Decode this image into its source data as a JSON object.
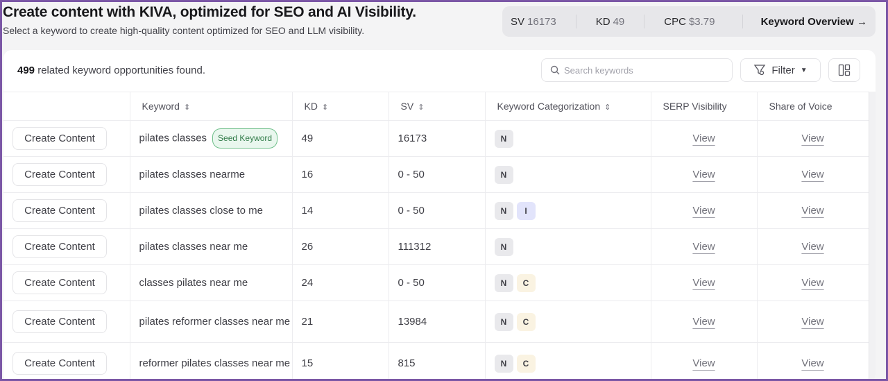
{
  "header": {
    "title": "Create content with KIVA, optimized for SEO and AI Visibility.",
    "subtitle": "Select a keyword to create high-quality content optimized for SEO and LLM visibility."
  },
  "stats": {
    "sv_label": "SV",
    "sv_value": "16173",
    "kd_label": "KD",
    "kd_value": "49",
    "cpc_label": "CPC",
    "cpc_value": "$3.79",
    "overview_label": "Keyword Overview →"
  },
  "toolbar": {
    "count": "499",
    "count_text": " related keyword opportunities found.",
    "search_placeholder": "Search keywords",
    "search_value": "",
    "filter_label": "Filter",
    "icons": [
      "search-icon",
      "filter-icon",
      "caret-down-icon",
      "layout-columns-icon"
    ]
  },
  "table": {
    "headers": [
      "",
      "Keyword",
      "KD",
      "SV",
      "Keyword Categorization",
      "SERP Visibility",
      "Share of Voice"
    ],
    "sortable": [
      false,
      true,
      true,
      true,
      true,
      false,
      false
    ],
    "action_label": "Create Content",
    "view_label": "View",
    "seed_badge": "Seed Keyword",
    "category_colors": {
      "N": "#e9e9ec",
      "I": "#e2e4fb",
      "C": "#faf3e2"
    },
    "rows": [
      {
        "keyword": "pilates classes",
        "seed": true,
        "kd": "49",
        "sv": "16173",
        "cats": [
          "N"
        ]
      },
      {
        "keyword": "pilates classes nearme",
        "kd": "16",
        "sv": "0 - 50",
        "cats": [
          "N"
        ]
      },
      {
        "keyword": "pilates classes close to me",
        "kd": "14",
        "sv": "0 - 50",
        "cats": [
          "N",
          "I"
        ]
      },
      {
        "keyword": "pilates classes near me",
        "kd": "26",
        "sv": "111312",
        "cats": [
          "N"
        ]
      },
      {
        "keyword": "classes pilates near me",
        "kd": "24",
        "sv": "0 - 50",
        "cats": [
          "N",
          "C"
        ]
      },
      {
        "keyword": "pilates reformer classes near me",
        "kd": "21",
        "sv": "13984",
        "cats": [
          "N",
          "C"
        ]
      },
      {
        "keyword": "reformer pilates classes near me",
        "kd": "15",
        "sv": "815",
        "cats": [
          "N",
          "C"
        ]
      }
    ]
  }
}
